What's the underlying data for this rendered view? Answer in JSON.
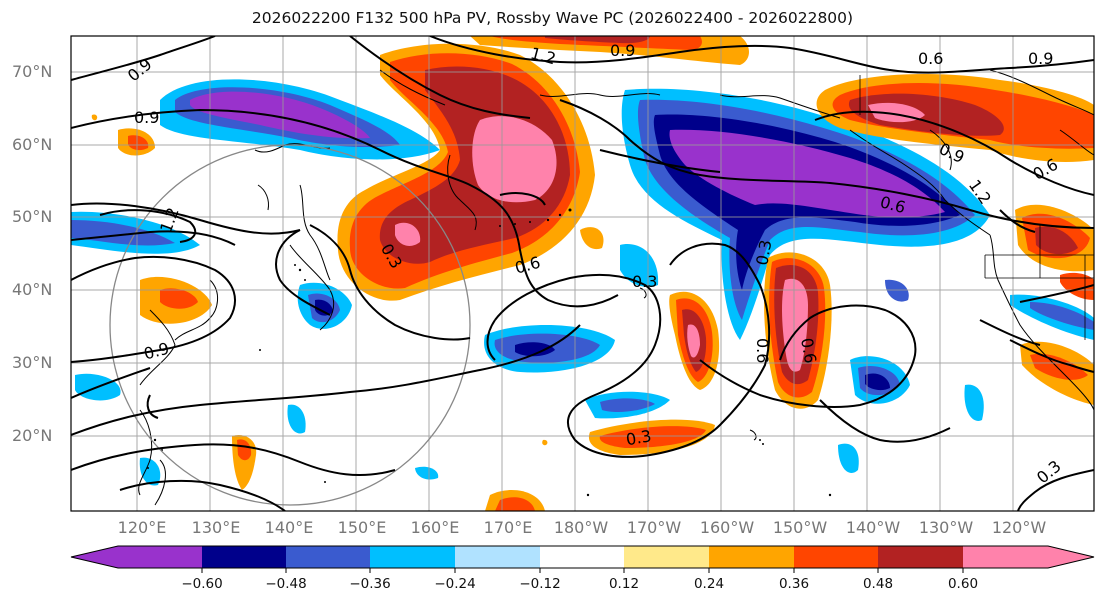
{
  "title": "2026022200 F132 500 hPa PV, Rossby Wave PC (2026022400 - 2026022800)",
  "latitudes": [
    "70°N",
    "60°N",
    "50°N",
    "40°N",
    "30°N",
    "20°N"
  ],
  "longitudes": [
    "120°E",
    "130°E",
    "140°E",
    "150°E",
    "160°E",
    "170°E",
    "180°W",
    "170°W",
    "160°W",
    "150°W",
    "140°W",
    "130°W",
    "120°W"
  ],
  "colorbar": {
    "ticks": [
      "−0.60",
      "−0.48",
      "−0.36",
      "−0.24",
      "−0.12",
      "0.12",
      "0.24",
      "0.36",
      "0.48",
      "0.60"
    ],
    "colors": [
      "#9932cc",
      "#00008b",
      "#3a5bcf",
      "#00bfff",
      "#b0e2ff",
      "#ffffff",
      "#ffe98a",
      "#ffa500",
      "#ff4500",
      "#b22222",
      "#ff82ab"
    ]
  },
  "contour_labels": [
    "0.9",
    "0.9",
    "1.2",
    "0.9",
    "0.6",
    "0.9",
    "0.9",
    "0.6",
    "1.2",
    "0.6",
    "0.3",
    "0.6",
    "0.3",
    "0.3",
    "1.2",
    "0.6",
    "0.6",
    "0.3",
    "0.3"
  ]
}
